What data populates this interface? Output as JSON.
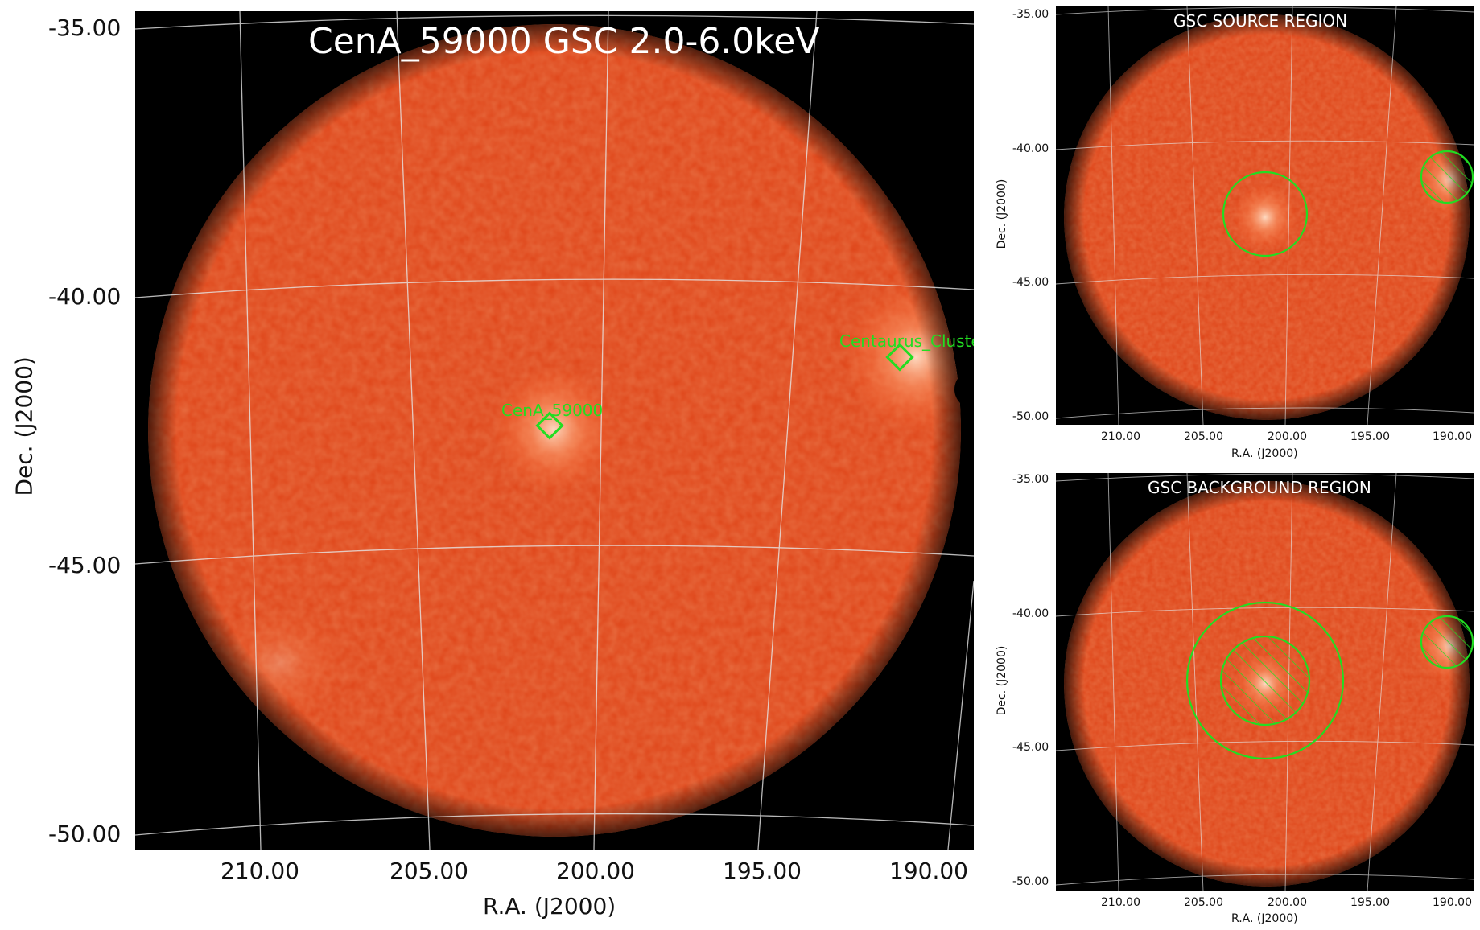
{
  "main_image": {
    "title": "CenA_59000 GSC 2.0-6.0keV",
    "xlabel": "R.A. (J2000)",
    "ylabel": "Dec. (J2000)",
    "x_ticks": [
      "210.00",
      "205.00",
      "200.00",
      "195.00",
      "190.00"
    ],
    "y_ticks": [
      "-35.00",
      "-40.00",
      "-45.00",
      "-50.00"
    ],
    "sources": [
      {
        "label": "CenA_59000"
      },
      {
        "label": "Centaurus_Cluster"
      }
    ],
    "marker_color": "#22dd22",
    "colormap": "heat"
  },
  "source_region_panel": {
    "title": "GSC SOURCE REGION",
    "xlabel": "R.A. (J2000)",
    "ylabel": "Dec. (J2000)",
    "x_ticks": [
      "210.00",
      "205.00",
      "200.00",
      "195.00",
      "190.00"
    ],
    "y_ticks": [
      "-35.00",
      "-40.00",
      "-45.00",
      "-50.00"
    ]
  },
  "background_region_panel": {
    "title": "GSC BACKGROUND REGION",
    "xlabel": "R.A. (J2000)",
    "ylabel": "Dec. (J2000)",
    "x_ticks": [
      "210.00",
      "205.00",
      "200.00",
      "195.00",
      "190.00"
    ],
    "y_ticks": [
      "-35.00",
      "-40.00",
      "-45.00",
      "-50.00"
    ]
  }
}
